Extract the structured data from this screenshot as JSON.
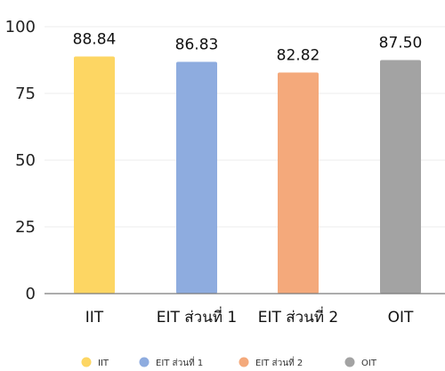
{
  "chart_data": {
    "type": "bar",
    "categories": [
      "IIT",
      "EIT ส่วนที่ 1",
      "EIT ส่วนที่ 2",
      "OIT"
    ],
    "values": [
      88.84,
      86.83,
      82.82,
      87.5
    ],
    "value_labels": [
      "88.84",
      "86.83",
      "82.82",
      "87.50"
    ],
    "colors": [
      "#FDD663",
      "#8EACDF",
      "#F4A97B",
      "#A3A3A3"
    ],
    "ylim": [
      0,
      100
    ],
    "yticks": [
      0,
      25,
      50,
      75,
      100
    ],
    "grid": true,
    "legend": {
      "position": "bottom",
      "entries": [
        "IIT",
        "EIT ส่วนที่ 1",
        "EIT ส่วนที่ 2",
        "OIT"
      ]
    }
  }
}
